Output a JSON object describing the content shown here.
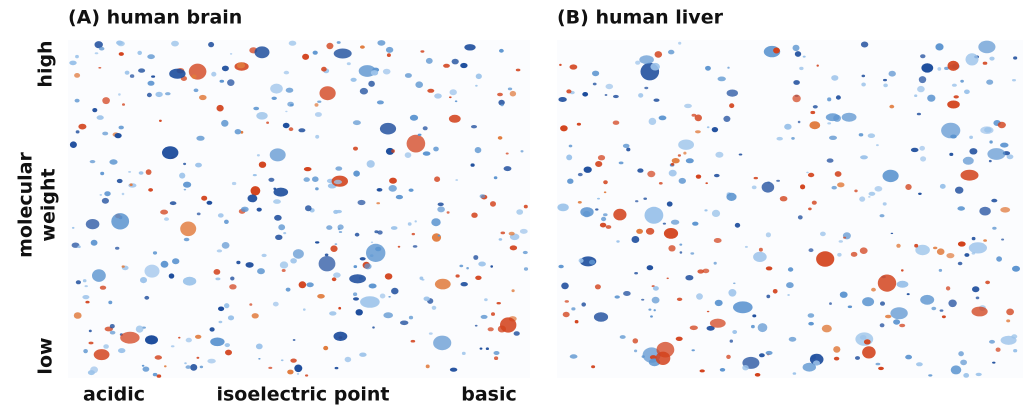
{
  "panels": [
    {
      "title": "(A) human brain"
    },
    {
      "title": "(B) human liver"
    }
  ],
  "y_axis": {
    "high": "high",
    "label_lines": [
      "molecular",
      "weight"
    ],
    "low": "low"
  },
  "x_axis": {
    "left": "acidic",
    "center": "isoelectric point",
    "right": "basic"
  }
}
